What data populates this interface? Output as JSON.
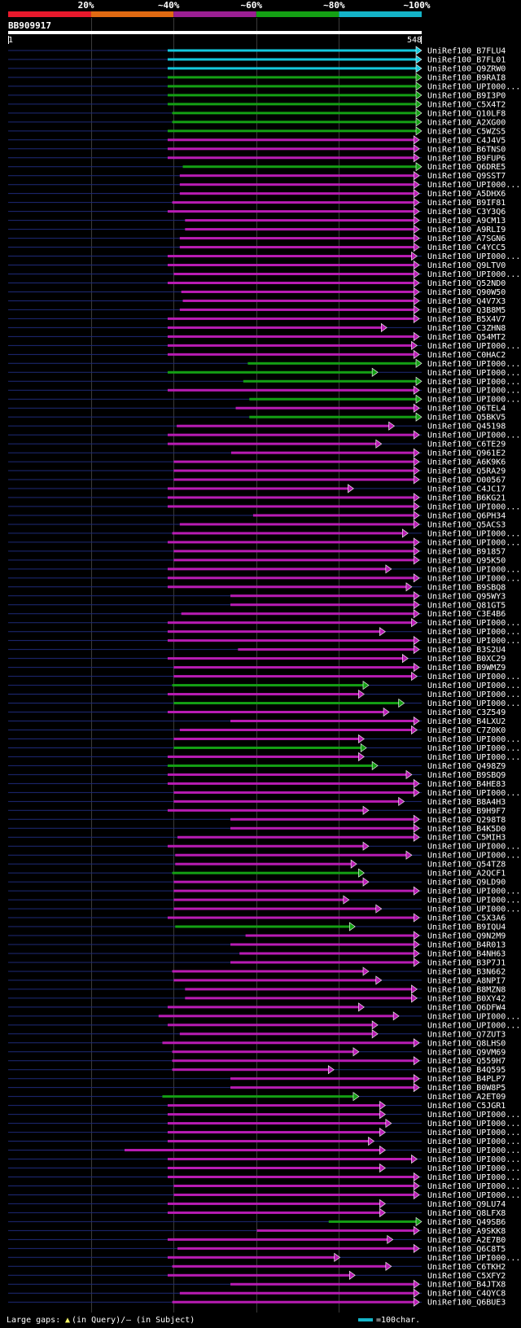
{
  "chart_data": {
    "type": "alignment-map",
    "query_id": "BB909917",
    "query_start_label": "1",
    "query_end_label": "548",
    "query_length": 548,
    "identity_scale": [
      {
        "label": "20%",
        "color": "#e8192c"
      },
      {
        "label": "~40%",
        "color": "#e06a12"
      },
      {
        "label": "~60%",
        "color": "#9b1f93"
      },
      {
        "label": "~80%",
        "color": "#14a014"
      },
      {
        "label": "~100%",
        "color": "#14b4c8"
      }
    ],
    "footer_left": "Large gaps:",
    "footer_query_mark": "▲",
    "footer_query_text": "(in Query)/",
    "footer_subject_text": "– (in Subject)",
    "footer_bar_text": "=100char.",
    "hits": [
      {
        "name": "UniRef100_B7FLU4",
        "cls": "c",
        "start": 212,
        "end": 548
      },
      {
        "name": "UniRef100_B7FL01",
        "cls": "c",
        "start": 212,
        "end": 548
      },
      {
        "name": "UniRef100_Q9ZRW0",
        "cls": "c",
        "start": 212,
        "end": 548
      },
      {
        "name": "UniRef100_B9RAI8",
        "cls": "g",
        "start": 212,
        "end": 548
      },
      {
        "name": "UniRef100_UPI000...",
        "cls": "g",
        "start": 212,
        "end": 548
      },
      {
        "name": "UniRef100_B9I3P0",
        "cls": "g",
        "start": 212,
        "end": 548
      },
      {
        "name": "UniRef100_C5X4T2",
        "cls": "g",
        "start": 212,
        "end": 548
      },
      {
        "name": "UniRef100_Q10LF8",
        "cls": "g",
        "start": 218,
        "end": 548
      },
      {
        "name": "UniRef100_A2XG00",
        "cls": "g",
        "start": 218,
        "end": 548
      },
      {
        "name": "UniRef100_C5WZS5",
        "cls": "g",
        "start": 212,
        "end": 548
      },
      {
        "name": "UniRef100_C4J4V5",
        "cls": "m",
        "start": 212,
        "end": 545
      },
      {
        "name": "UniRef100_B6TNS0",
        "cls": "m",
        "start": 212,
        "end": 545
      },
      {
        "name": "UniRef100_B9FUP6",
        "cls": "m",
        "start": 212,
        "end": 545
      },
      {
        "name": "UniRef100_Q6DRE5",
        "cls": "g",
        "start": 232,
        "end": 548
      },
      {
        "name": "UniRef100_Q9SST7",
        "cls": "m",
        "start": 228,
        "end": 545
      },
      {
        "name": "UniRef100_UPI000...",
        "cls": "m",
        "start": 228,
        "end": 545
      },
      {
        "name": "UniRef100_A5DHX6",
        "cls": "m",
        "start": 228,
        "end": 545
      },
      {
        "name": "UniRef100_B9IF81",
        "cls": "m",
        "start": 218,
        "end": 545
      },
      {
        "name": "UniRef100_C3Y3Q6",
        "cls": "m",
        "start": 212,
        "end": 545
      },
      {
        "name": "UniRef100_A9CM13",
        "cls": "m",
        "start": 235,
        "end": 545
      },
      {
        "name": "UniRef100_A9RLI9",
        "cls": "m",
        "start": 235,
        "end": 545
      },
      {
        "name": "UniRef100_A7SGN6",
        "cls": "m",
        "start": 228,
        "end": 545
      },
      {
        "name": "UniRef100_C4YCC5",
        "cls": "m",
        "start": 228,
        "end": 545
      },
      {
        "name": "UniRef100_UPI000...",
        "cls": "m",
        "start": 212,
        "end": 542
      },
      {
        "name": "UniRef100_Q9LTV0",
        "cls": "m",
        "start": 212,
        "end": 545
      },
      {
        "name": "UniRef100_UPI000...",
        "cls": "m",
        "start": 220,
        "end": 545
      },
      {
        "name": "UniRef100_Q52ND0",
        "cls": "m",
        "start": 212,
        "end": 545
      },
      {
        "name": "UniRef100_Q90W50",
        "cls": "m",
        "start": 230,
        "end": 545
      },
      {
        "name": "UniRef100_Q4V7X3",
        "cls": "m",
        "start": 232,
        "end": 545
      },
      {
        "name": "UniRef100_Q3B8M5",
        "cls": "m",
        "start": 228,
        "end": 545
      },
      {
        "name": "UniRef100_B5X4V7",
        "cls": "m",
        "start": 212,
        "end": 545
      },
      {
        "name": "UniRef100_C3ZHN8",
        "cls": "m",
        "start": 212,
        "end": 502
      },
      {
        "name": "UniRef100_Q54MT2",
        "cls": "m",
        "start": 212,
        "end": 545
      },
      {
        "name": "UniRef100_UPI000...",
        "cls": "m",
        "start": 212,
        "end": 542
      },
      {
        "name": "UniRef100_C0HAC2",
        "cls": "m",
        "start": 212,
        "end": 545
      },
      {
        "name": "UniRef100_UPI000...",
        "cls": "g",
        "start": 318,
        "end": 548
      },
      {
        "name": "UniRef100_UPI000...",
        "cls": "g",
        "start": 212,
        "end": 490
      },
      {
        "name": "UniRef100_UPI000...",
        "cls": "g",
        "start": 312,
        "end": 548
      },
      {
        "name": "UniRef100_UPI000...",
        "cls": "m",
        "start": 212,
        "end": 545
      },
      {
        "name": "UniRef100_UPI000...",
        "cls": "g",
        "start": 320,
        "end": 548
      },
      {
        "name": "UniRef100_Q6TEL4",
        "cls": "m",
        "start": 302,
        "end": 545
      },
      {
        "name": "UniRef100_Q5BKV5",
        "cls": "g",
        "start": 320,
        "end": 548
      },
      {
        "name": "UniRef100_Q45198",
        "cls": "m",
        "start": 224,
        "end": 512
      },
      {
        "name": "UniRef100_UPI000...",
        "cls": "m",
        "start": 212,
        "end": 545
      },
      {
        "name": "UniRef100_C6TE29",
        "cls": "m",
        "start": 212,
        "end": 495
      },
      {
        "name": "UniRef100_Q961E2",
        "cls": "m",
        "start": 296,
        "end": 545
      },
      {
        "name": "UniRef100_A6K9K6",
        "cls": "m",
        "start": 220,
        "end": 545
      },
      {
        "name": "UniRef100_Q5RA29",
        "cls": "m",
        "start": 220,
        "end": 545
      },
      {
        "name": "UniRef100_O00567",
        "cls": "m",
        "start": 220,
        "end": 545
      },
      {
        "name": "UniRef100_C4JC17",
        "cls": "m",
        "start": 212,
        "end": 458
      },
      {
        "name": "UniRef100_B6KG21",
        "cls": "m",
        "start": 212,
        "end": 545
      },
      {
        "name": "UniRef100_UPI000...",
        "cls": "m",
        "start": 212,
        "end": 545
      },
      {
        "name": "UniRef100_Q6PH34",
        "cls": "m",
        "start": 325,
        "end": 545
      },
      {
        "name": "UniRef100_Q5ACS3",
        "cls": "m",
        "start": 228,
        "end": 545
      },
      {
        "name": "UniRef100_UPI000...",
        "cls": "m",
        "start": 218,
        "end": 530
      },
      {
        "name": "UniRef100_UPI000...",
        "cls": "m",
        "start": 212,
        "end": 545
      },
      {
        "name": "UniRef100_B91857",
        "cls": "m",
        "start": 220,
        "end": 545
      },
      {
        "name": "UniRef100_Q95K50",
        "cls": "m",
        "start": 220,
        "end": 545
      },
      {
        "name": "UniRef100_UPI000...",
        "cls": "m",
        "start": 212,
        "end": 508
      },
      {
        "name": "UniRef100_UPI000...",
        "cls": "m",
        "start": 212,
        "end": 545
      },
      {
        "name": "UniRef100_B9SBQ8",
        "cls": "m",
        "start": 212,
        "end": 535
      },
      {
        "name": "UniRef100_Q95WY3",
        "cls": "m",
        "start": 295,
        "end": 545
      },
      {
        "name": "UniRef100_Q81GT5",
        "cls": "m",
        "start": 295,
        "end": 545
      },
      {
        "name": "UniRef100_C3E4B6",
        "cls": "m",
        "start": 230,
        "end": 545
      },
      {
        "name": "UniRef100_UPI000...",
        "cls": "m",
        "start": 212,
        "end": 542
      },
      {
        "name": "UniRef100_UPI000...",
        "cls": "m",
        "start": 212,
        "end": 500
      },
      {
        "name": "UniRef100_UPI000...",
        "cls": "m",
        "start": 212,
        "end": 545
      },
      {
        "name": "UniRef100_B3S2U4",
        "cls": "m",
        "start": 305,
        "end": 545
      },
      {
        "name": "UniRef100_B0XC29",
        "cls": "m",
        "start": 212,
        "end": 530
      },
      {
        "name": "UniRef100_B9WMZ9",
        "cls": "m",
        "start": 220,
        "end": 545
      },
      {
        "name": "UniRef100_UPI000...",
        "cls": "m",
        "start": 220,
        "end": 542
      },
      {
        "name": "UniRef100_UPI000...",
        "cls": "g",
        "start": 218,
        "end": 478
      },
      {
        "name": "UniRef100_UPI000...",
        "cls": "m",
        "start": 212,
        "end": 472
      },
      {
        "name": "UniRef100_UPI000...",
        "cls": "g",
        "start": 220,
        "end": 525
      },
      {
        "name": "UniRef100_C3Z549",
        "cls": "m",
        "start": 212,
        "end": 505
      },
      {
        "name": "UniRef100_B4LXU2",
        "cls": "m",
        "start": 295,
        "end": 545
      },
      {
        "name": "UniRef100_C7Z0K0",
        "cls": "m",
        "start": 228,
        "end": 542
      },
      {
        "name": "UniRef100_UPI000...",
        "cls": "m",
        "start": 220,
        "end": 472
      },
      {
        "name": "UniRef100_UPI000...",
        "cls": "g",
        "start": 220,
        "end": 475
      },
      {
        "name": "UniRef100_UPI000...",
        "cls": "m",
        "start": 212,
        "end": 472
      },
      {
        "name": "UniRef100_Q498Z9",
        "cls": "g",
        "start": 212,
        "end": 490
      },
      {
        "name": "UniRef100_B9SBQ9",
        "cls": "m",
        "start": 212,
        "end": 535
      },
      {
        "name": "UniRef100_B4HE83",
        "cls": "m",
        "start": 212,
        "end": 545
      },
      {
        "name": "UniRef100_UPI000...",
        "cls": "m",
        "start": 220,
        "end": 545
      },
      {
        "name": "UniRef100_B8A4H3",
        "cls": "m",
        "start": 220,
        "end": 525
      },
      {
        "name": "UniRef100_B9H9F7",
        "cls": "m",
        "start": 212,
        "end": 478
      },
      {
        "name": "UniRef100_Q298T8",
        "cls": "m",
        "start": 295,
        "end": 545
      },
      {
        "name": "UniRef100_B4K5D0",
        "cls": "m",
        "start": 295,
        "end": 545
      },
      {
        "name": "UniRef100_C5MIH3",
        "cls": "m",
        "start": 225,
        "end": 545
      },
      {
        "name": "UniRef100_UPI000...",
        "cls": "m",
        "start": 212,
        "end": 478
      },
      {
        "name": "UniRef100_UPI000...",
        "cls": "m",
        "start": 222,
        "end": 535
      },
      {
        "name": "UniRef100_Q54TZ8",
        "cls": "m",
        "start": 222,
        "end": 462
      },
      {
        "name": "UniRef100_A2QCF1",
        "cls": "g",
        "start": 218,
        "end": 472
      },
      {
        "name": "UniRef100_Q9LD90",
        "cls": "m",
        "start": 220,
        "end": 478
      },
      {
        "name": "UniRef100_UPI000...",
        "cls": "m",
        "start": 220,
        "end": 545
      },
      {
        "name": "UniRef100_UPI000...",
        "cls": "m",
        "start": 220,
        "end": 452
      },
      {
        "name": "UniRef100_UPI000...",
        "cls": "m",
        "start": 220,
        "end": 495
      },
      {
        "name": "UniRef100_C5X3A6",
        "cls": "m",
        "start": 212,
        "end": 545
      },
      {
        "name": "UniRef100_B9IQU4",
        "cls": "g",
        "start": 222,
        "end": 460
      },
      {
        "name": "UniRef100_Q9N2M9",
        "cls": "m",
        "start": 315,
        "end": 545
      },
      {
        "name": "UniRef100_B4R013",
        "cls": "m",
        "start": 295,
        "end": 545
      },
      {
        "name": "UniRef100_B4NH63",
        "cls": "m",
        "start": 307,
        "end": 545
      },
      {
        "name": "UniRef100_B3P7J1",
        "cls": "m",
        "start": 295,
        "end": 545
      },
      {
        "name": "UniRef100_B3N662",
        "cls": "m",
        "start": 218,
        "end": 478
      },
      {
        "name": "UniRef100_A8NPI7",
        "cls": "m",
        "start": 220,
        "end": 495
      },
      {
        "name": "UniRef100_B8MZN8",
        "cls": "m",
        "start": 235,
        "end": 542
      },
      {
        "name": "UniRef100_B0XY42",
        "cls": "m",
        "start": 235,
        "end": 542
      },
      {
        "name": "UniRef100_Q6DFW4",
        "cls": "m",
        "start": 212,
        "end": 472
      },
      {
        "name": "UniRef100_UPI000...",
        "cls": "m",
        "start": 200,
        "end": 518
      },
      {
        "name": "UniRef100_UPI000...",
        "cls": "m",
        "start": 212,
        "end": 490
      },
      {
        "name": "UniRef100_Q7ZUT3",
        "cls": "m",
        "start": 228,
        "end": 490
      },
      {
        "name": "UniRef100_Q8LHS0",
        "cls": "m",
        "start": 205,
        "end": 545
      },
      {
        "name": "UniRef100_Q9VM69",
        "cls": "m",
        "start": 218,
        "end": 465
      },
      {
        "name": "UniRef100_Q559H7",
        "cls": "m",
        "start": 218,
        "end": 545
      },
      {
        "name": "UniRef100_B4Q595",
        "cls": "m",
        "start": 218,
        "end": 432
      },
      {
        "name": "UniRef100_B4PLP7",
        "cls": "m",
        "start": 295,
        "end": 545
      },
      {
        "name": "UniRef100_B0W8P5",
        "cls": "m",
        "start": 295,
        "end": 545
      },
      {
        "name": "UniRef100_A2ET09",
        "cls": "g",
        "start": 205,
        "end": 465
      },
      {
        "name": "UniRef100_C5JGR1",
        "cls": "m",
        "start": 212,
        "end": 500
      },
      {
        "name": "UniRef100_UPI000...",
        "cls": "m",
        "start": 212,
        "end": 500
      },
      {
        "name": "UniRef100_UPI000...",
        "cls": "m",
        "start": 212,
        "end": 508
      },
      {
        "name": "UniRef100_UPI000...",
        "cls": "m",
        "start": 212,
        "end": 500
      },
      {
        "name": "UniRef100_UPI000...",
        "cls": "m",
        "start": 212,
        "end": 485
      },
      {
        "name": "UniRef100_UPI000...",
        "cls": "m",
        "start": 155,
        "end": 500
      },
      {
        "name": "UniRef100_UPI000...",
        "cls": "m",
        "start": 212,
        "end": 542
      },
      {
        "name": "UniRef100_UPI000...",
        "cls": "m",
        "start": 212,
        "end": 500
      },
      {
        "name": "UniRef100_UPI000...",
        "cls": "m",
        "start": 212,
        "end": 545
      },
      {
        "name": "UniRef100_UPI000...",
        "cls": "m",
        "start": 220,
        "end": 545
      },
      {
        "name": "UniRef100_UPI000...",
        "cls": "m",
        "start": 220,
        "end": 545
      },
      {
        "name": "UniRef100_Q9LU74",
        "cls": "m",
        "start": 212,
        "end": 500
      },
      {
        "name": "UniRef100_Q8LFX8",
        "cls": "m",
        "start": 212,
        "end": 500
      },
      {
        "name": "UniRef100_Q49SB6",
        "cls": "g",
        "start": 425,
        "end": 548
      },
      {
        "name": "UniRef100_A9SKK8",
        "cls": "m",
        "start": 330,
        "end": 545
      },
      {
        "name": "UniRef100_A2E7B0",
        "cls": "m",
        "start": 212,
        "end": 510
      },
      {
        "name": "UniRef100_Q6C8T5",
        "cls": "m",
        "start": 225,
        "end": 545
      },
      {
        "name": "UniRef100_UPI000...",
        "cls": "m",
        "start": 212,
        "end": 440
      },
      {
        "name": "UniRef100_C6TKH2",
        "cls": "m",
        "start": 218,
        "end": 508
      },
      {
        "name": "UniRef100_C5XFY2",
        "cls": "m",
        "start": 212,
        "end": 460
      },
      {
        "name": "UniRef100_B4JTX8",
        "cls": "m",
        "start": 295,
        "end": 545
      },
      {
        "name": "UniRef100_C4QYC8",
        "cls": "m",
        "start": 228,
        "end": 545
      },
      {
        "name": "UniRef100_Q6BUE3",
        "cls": "m",
        "start": 218,
        "end": 545
      }
    ]
  }
}
